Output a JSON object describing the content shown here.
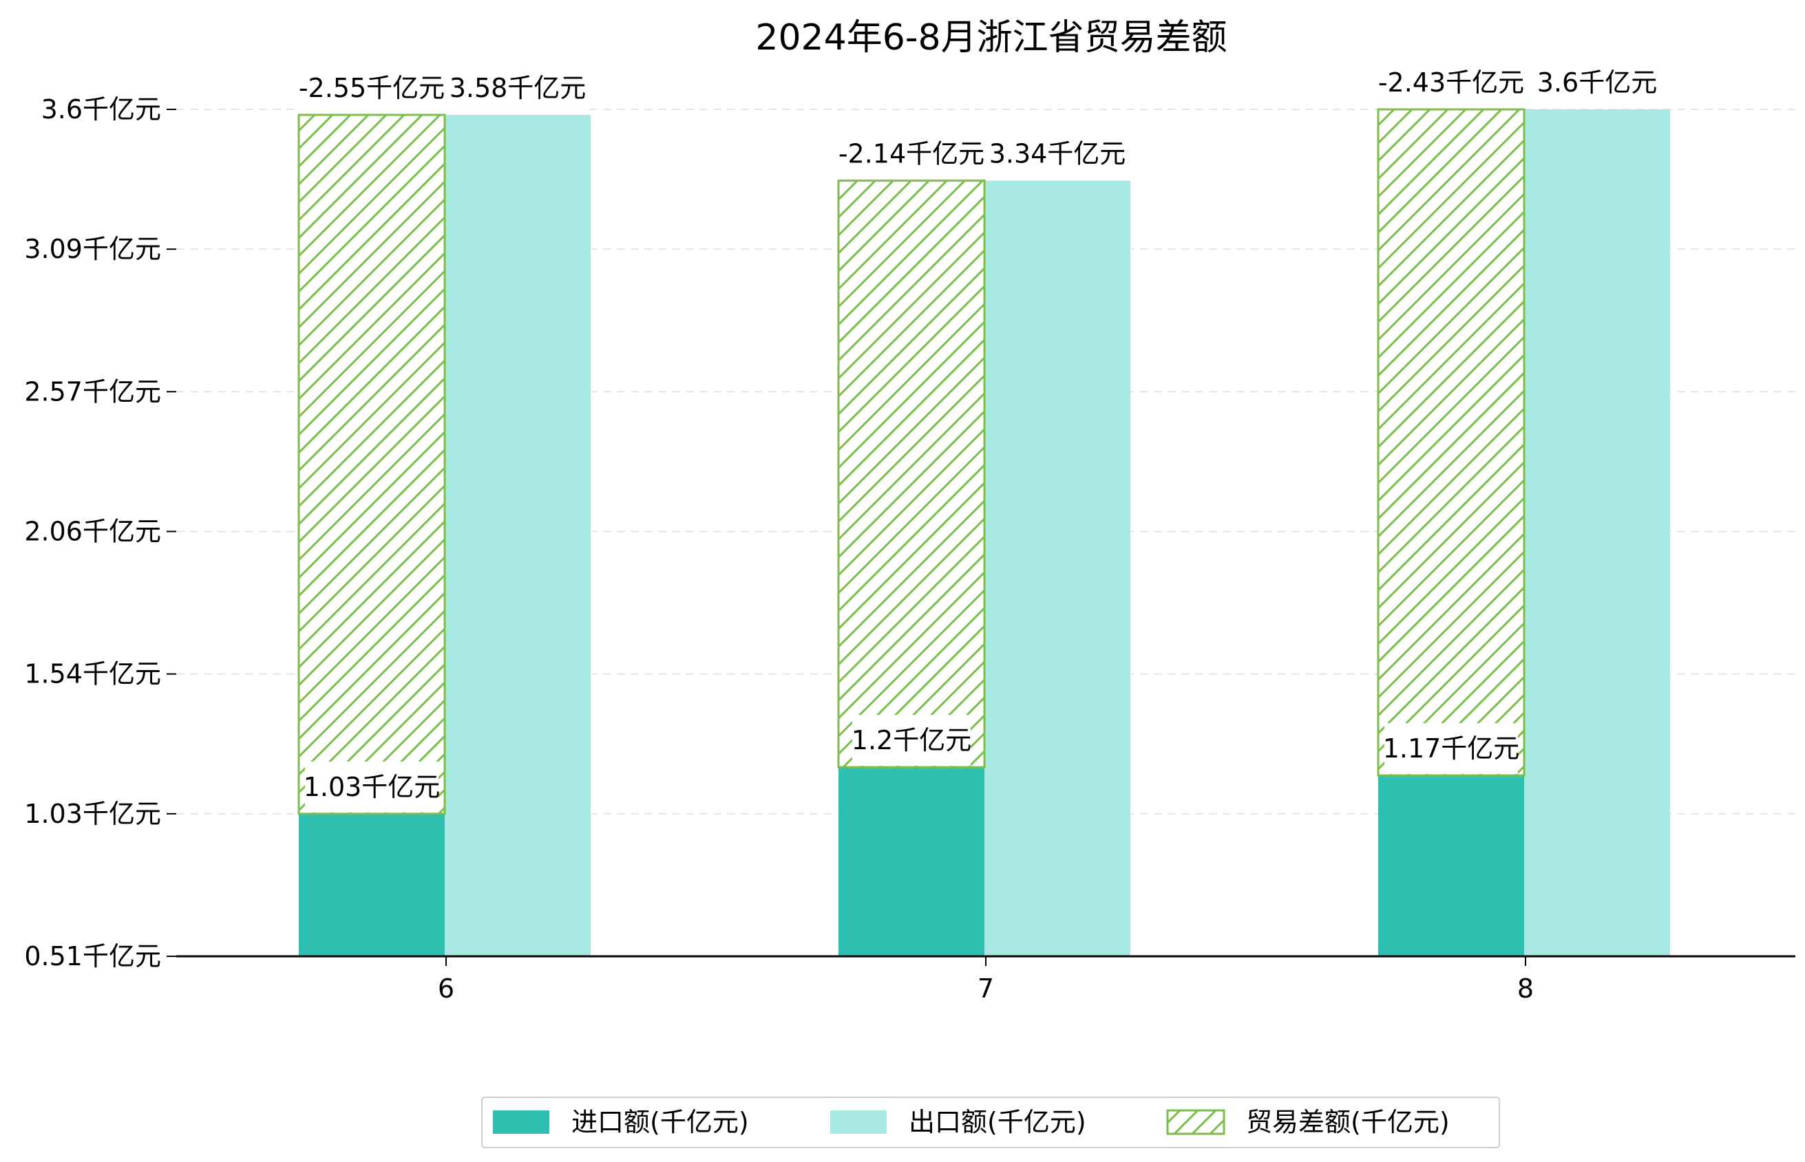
{
  "chart_data": {
    "type": "bar",
    "title": "2024年6-8月浙江省贸易差额",
    "xlabel": "",
    "ylabel": "",
    "categories": [
      "6",
      "7",
      "8"
    ],
    "ylim": [
      0.51,
      3.6
    ],
    "yticks": [
      0.51,
      1.03,
      1.54,
      2.06,
      2.57,
      3.09,
      3.6
    ],
    "ytick_labels": [
      "0.51千亿元",
      "1.03千亿元",
      "1.54千亿元",
      "2.06千亿元",
      "2.57千亿元",
      "3.09千亿元",
      "3.6千亿元"
    ],
    "grid": "horizontal dashed",
    "legend_position": "bottom-center",
    "series": [
      {
        "name": "进口额(千亿元)",
        "color": "#2ebfb1",
        "values": [
          1.03,
          1.2,
          1.17
        ],
        "labels": [
          "1.03千亿元",
          "1.2千亿元",
          "1.17千亿元"
        ]
      },
      {
        "name": "出口额(千亿元)",
        "color": "#a8e8e2",
        "values": [
          3.58,
          3.34,
          3.6
        ],
        "labels": [
          "3.58千亿元",
          "3.34千亿元",
          "3.6千亿元"
        ]
      },
      {
        "name": "贸易差额(千亿元)",
        "color": "#7bbf4a",
        "hatch": true,
        "values": [
          -2.55,
          -2.14,
          -2.43
        ],
        "labels": [
          "-2.55千亿元",
          "-2.14千亿元",
          "-2.43千亿元"
        ]
      }
    ]
  }
}
